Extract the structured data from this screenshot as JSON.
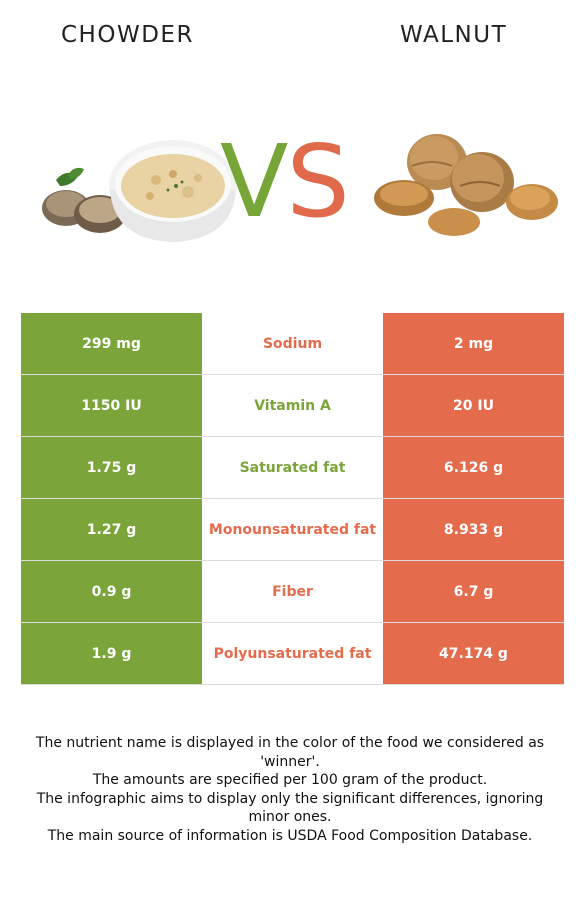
{
  "header": {
    "left_food": "CHOWDER",
    "right_food": "WALNUT",
    "vs_v": "V",
    "vs_s": "S"
  },
  "colors": {
    "left_winner": "#7ba53a",
    "right_winner": "#e46c4c"
  },
  "rows": [
    {
      "left": "299 mg",
      "nutrient": "Sodium",
      "right": "2 mg",
      "winner": "right"
    },
    {
      "left": "1150 IU",
      "nutrient": "Vitamin A",
      "right": "20 IU",
      "winner": "left"
    },
    {
      "left": "1.75 g",
      "nutrient": "Saturated fat",
      "right": "6.126 g",
      "winner": "left"
    },
    {
      "left": "1.27 g",
      "nutrient": "Monounsaturated fat",
      "right": "8.933 g",
      "winner": "right"
    },
    {
      "left": "0.9 g",
      "nutrient": "Fiber",
      "right": "6.7 g",
      "winner": "right"
    },
    {
      "left": "1.9 g",
      "nutrient": "Polyunsaturated fat",
      "right": "47.174 g",
      "winner": "right"
    }
  ],
  "notes": [
    "The nutrient name is displayed in the color of the food we considered as 'winner'.",
    "The amounts are specified per 100 gram of the product.",
    "The infographic aims to display only the significant differences, ignoring minor ones.",
    "The main source of information is USDA Food Composition Database."
  ]
}
